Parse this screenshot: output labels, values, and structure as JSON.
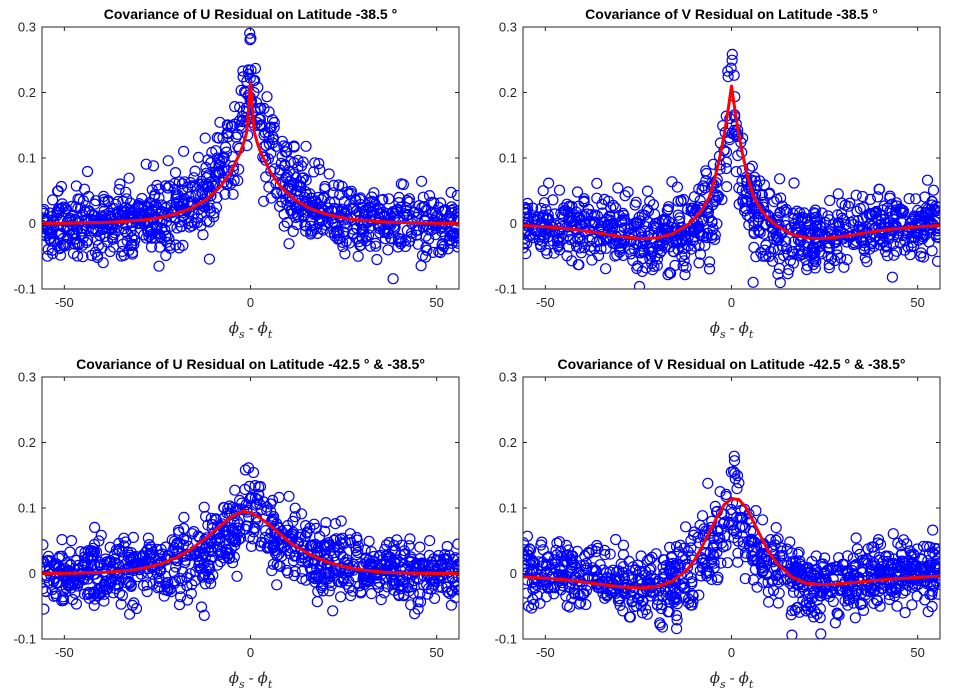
{
  "chart_data": [
    {
      "type": "scatter",
      "title": "Covariance of U Residual on Latitude -38.5",
      "title_suffix": "°",
      "xlabel": {
        "symbol": "ϕ",
        "first_sub": "s",
        "op": "-",
        "second_sub": "t"
      },
      "xlim": [
        -56,
        56
      ],
      "ylim": [
        -0.1,
        0.3
      ],
      "xticks": [
        -50,
        0,
        50
      ],
      "yticks": [
        -0.1,
        0,
        0.1,
        0.2,
        0.3
      ],
      "xtick_labels": [
        "-50",
        "0",
        "50"
      ],
      "ytick_labels": [
        "-0.1",
        "0",
        "0.1",
        "0.2",
        "0.3"
      ],
      "grid": false,
      "series": [
        {
          "kind": "scatter",
          "marker": "circle-open",
          "color": "#0000ff",
          "model": {
            "peak": 0.215,
            "decay": 8,
            "dip": 0,
            "dip_center": 0,
            "dip_width": 0,
            "noise": 0.032,
            "n": 1000
          }
        },
        {
          "kind": "line",
          "color": "#ff0000",
          "line_width": 2,
          "x": [
            -56,
            -50,
            -44,
            -40,
            -36,
            -32,
            -28,
            -24,
            -20,
            -16,
            -12,
            -10,
            -8,
            -6,
            -5,
            -4,
            -3,
            -2,
            -1,
            0,
            1,
            2,
            3,
            4,
            5,
            6,
            8,
            10,
            12,
            16,
            20,
            24,
            28,
            32,
            36,
            40,
            44,
            50,
            56
          ],
          "y": [
            0.0002,
            0.0004,
            0.001,
            0.0016,
            0.0024,
            0.0039,
            0.0059,
            0.0093,
            0.015,
            0.023,
            0.036,
            0.046,
            0.057,
            0.073,
            0.082,
            0.094,
            0.105,
            0.12,
            0.14,
            0.215,
            0.14,
            0.12,
            0.105,
            0.094,
            0.082,
            0.073,
            0.057,
            0.046,
            0.036,
            0.023,
            0.015,
            0.0093,
            0.0059,
            0.0039,
            0.0024,
            0.0016,
            0.001,
            0.0004,
            0.0002
          ]
        }
      ]
    },
    {
      "type": "scatter",
      "title": "Covariance of V Residual on Latitude -38.5",
      "title_suffix": "°",
      "xlabel": {
        "symbol": "ϕ",
        "first_sub": "s",
        "op": "-",
        "second_sub": "t"
      },
      "xlim": [
        -56,
        56
      ],
      "ylim": [
        -0.1,
        0.3
      ],
      "xticks": [
        -50,
        0,
        50
      ],
      "yticks": [
        -0.1,
        0,
        0.1,
        0.2,
        0.3
      ],
      "xtick_labels": [
        "-50",
        "0",
        "50"
      ],
      "ytick_labels": [
        "-0.1",
        "0",
        "0.1",
        "0.2",
        "0.3"
      ],
      "grid": false,
      "series": [
        {
          "kind": "scatter",
          "marker": "circle-open",
          "color": "#0000ff",
          "model": {
            "peak": 0.21,
            "decay": 3,
            "dip": -0.025,
            "dip_center": 20,
            "dip_width": 14,
            "noise": 0.034,
            "n": 1000
          }
        },
        {
          "kind": "line",
          "color": "#ff0000",
          "line_width": 2,
          "x": [
            -56,
            -50,
            -44,
            -40,
            -36,
            -32,
            -28,
            -24,
            -20,
            -16,
            -12,
            -10,
            -8,
            -6,
            -5,
            -4,
            -3,
            -2,
            -1,
            0,
            1,
            2,
            3,
            4,
            5,
            6,
            8,
            10,
            12,
            16,
            20,
            24,
            28,
            32,
            36,
            40,
            44,
            50,
            56
          ],
          "y": [
            -0.003,
            -0.005,
            -0.008,
            -0.011,
            -0.014,
            -0.018,
            -0.021,
            -0.023,
            -0.022,
            -0.016,
            -0.003,
            0.007,
            0.02,
            0.04,
            0.058,
            0.08,
            0.105,
            0.135,
            0.17,
            0.21,
            0.17,
            0.135,
            0.105,
            0.08,
            0.058,
            0.04,
            0.02,
            0.007,
            -0.003,
            -0.016,
            -0.022,
            -0.023,
            -0.021,
            -0.018,
            -0.014,
            -0.011,
            -0.008,
            -0.005,
            -0.003
          ]
        }
      ]
    },
    {
      "type": "scatter",
      "title": "Covariance of U Residual on Latitude -42.5",
      "title_suffix": "° & -38.5°",
      "xlabel": {
        "symbol": "ϕ",
        "first_sub": "s",
        "op": "-",
        "second_sub": "t"
      },
      "xlim": [
        -56,
        56
      ],
      "ylim": [
        -0.1,
        0.3
      ],
      "xticks": [
        -50,
        0,
        50
      ],
      "yticks": [
        -0.1,
        0,
        0.1,
        0.2,
        0.3
      ],
      "xtick_labels": [
        "-50",
        "0",
        "50"
      ],
      "ytick_labels": [
        "-0.1",
        "0",
        "0.1",
        "0.2",
        "0.3"
      ],
      "grid": false,
      "series": [
        {
          "kind": "scatter",
          "marker": "circle-open",
          "color": "#0000ff",
          "model": {
            "peak": 0.095,
            "decay": 12,
            "dip": 0,
            "dip_center": 0,
            "dip_width": 0,
            "noise": 0.03,
            "n": 1000
          }
        },
        {
          "kind": "line",
          "color": "#ff0000",
          "line_width": 2,
          "x": [
            -56,
            -50,
            -44,
            -40,
            -36,
            -32,
            -28,
            -24,
            -20,
            -16,
            -12,
            -10,
            -8,
            -6,
            -4,
            -2,
            0,
            2,
            4,
            6,
            8,
            10,
            12,
            16,
            20,
            24,
            28,
            32,
            36,
            40,
            44,
            50,
            56
          ],
          "y": [
            0.0,
            0.0005,
            0.001,
            0.0015,
            0.003,
            0.005,
            0.009,
            0.015,
            0.024,
            0.037,
            0.054,
            0.064,
            0.073,
            0.083,
            0.09,
            0.095,
            0.093,
            0.087,
            0.079,
            0.07,
            0.06,
            0.05,
            0.042,
            0.029,
            0.019,
            0.012,
            0.007,
            0.004,
            0.002,
            0.001,
            0.0005,
            0.0,
            0.0
          ]
        }
      ]
    },
    {
      "type": "scatter",
      "title": "Covariance of V Residual on Latitude -42.5",
      "title_suffix": "° & -38.5°",
      "xlabel": {
        "symbol": "ϕ",
        "first_sub": "s",
        "op": "-",
        "second_sub": "t"
      },
      "xlim": [
        -56,
        56
      ],
      "ylim": [
        -0.1,
        0.3
      ],
      "xticks": [
        -50,
        0,
        50
      ],
      "yticks": [
        -0.1,
        0,
        0.1,
        0.2,
        0.3
      ],
      "xtick_labels": [
        "-50",
        "0",
        "50"
      ],
      "ytick_labels": [
        "-0.1",
        "0",
        "0.1",
        "0.2",
        "0.3"
      ],
      "grid": false,
      "series": [
        {
          "kind": "scatter",
          "marker": "circle-open",
          "color": "#0000ff",
          "model": {
            "peak": 0.11,
            "decay": 6,
            "dip": -0.02,
            "dip_center": 22,
            "dip_width": 14,
            "noise": 0.03,
            "n": 1000
          }
        },
        {
          "kind": "line",
          "color": "#ff0000",
          "line_width": 2,
          "x": [
            -56,
            -50,
            -44,
            -40,
            -36,
            -32,
            -28,
            -24,
            -20,
            -16,
            -12,
            -10,
            -8,
            -6,
            -4,
            -2,
            0,
            2,
            4,
            6,
            8,
            10,
            12,
            16,
            20,
            24,
            28,
            32,
            36,
            40,
            44,
            50,
            56
          ],
          "y": [
            -0.005,
            -0.007,
            -0.01,
            -0.013,
            -0.016,
            -0.019,
            -0.021,
            -0.022,
            -0.02,
            -0.012,
            0.005,
            0.02,
            0.04,
            0.063,
            0.085,
            0.105,
            0.114,
            0.113,
            0.1,
            0.078,
            0.055,
            0.033,
            0.017,
            -0.005,
            -0.015,
            -0.017,
            -0.016,
            -0.014,
            -0.012,
            -0.01,
            -0.008,
            -0.006,
            -0.004
          ]
        }
      ]
    }
  ]
}
